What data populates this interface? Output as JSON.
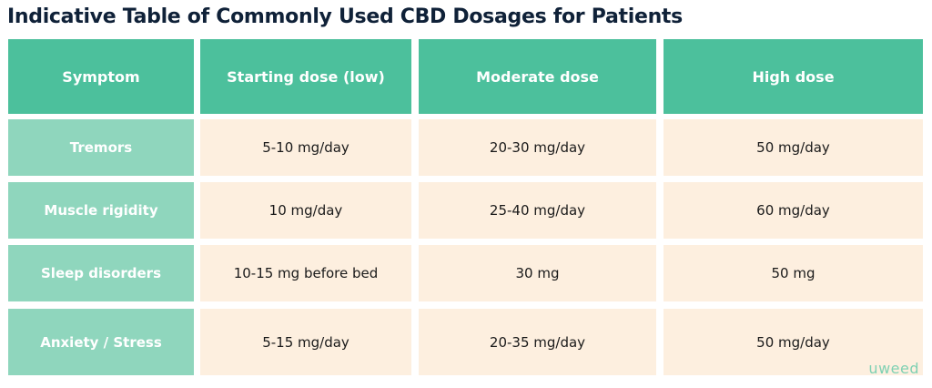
{
  "title": "Indicative Table of Commonly Used CBD Dosages for Patients",
  "table": {
    "headers": [
      "Symptom",
      "Starting dose (low)",
      "Moderate dose",
      "High dose"
    ],
    "rows": [
      {
        "symptom": "Tremors",
        "low": "5-10 mg/day",
        "moderate": "20-30 mg/day",
        "high": "50 mg/day"
      },
      {
        "symptom": "Muscle rigidity",
        "low": "10 mg/day",
        "moderate": "25-40 mg/day",
        "high": "60 mg/day"
      },
      {
        "symptom": "Sleep disorders",
        "low": "10-15 mg before bed",
        "moderate": "30 mg",
        "high": "50 mg"
      },
      {
        "symptom": "Anxiety / Stress",
        "low": "5-15 mg/day",
        "moderate": "20-35 mg/day",
        "high": "50 mg/day"
      }
    ]
  },
  "brand": "uweed",
  "colors": {
    "header_bg": "#4cc09c",
    "symptom_bg": "#8fd6bd",
    "value_bg": "#fdefdf",
    "title_text": "#0f2138"
  }
}
